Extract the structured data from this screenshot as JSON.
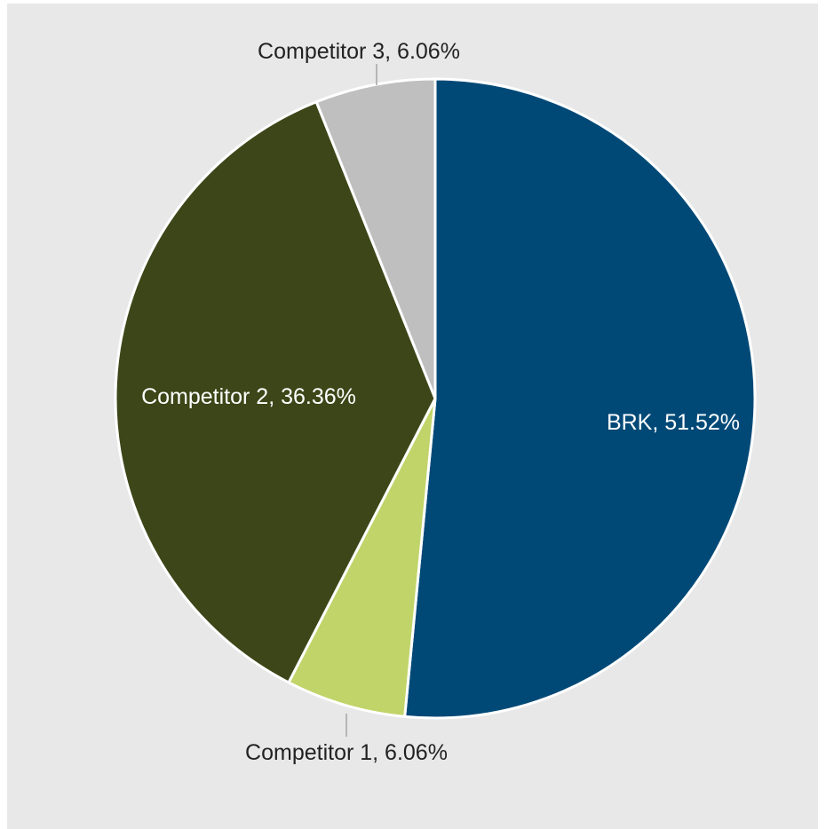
{
  "chart_data": {
    "type": "pie",
    "title": "",
    "slices": [
      {
        "label": "BRK",
        "value": 51.52,
        "display": "BRK, 51.52%",
        "color": "#004977",
        "label_color": "#ffffff"
      },
      {
        "label": "Competitor 1",
        "value": 6.06,
        "display": "Competitor 1, 6.06%",
        "color": "#c1d46a",
        "label_color": "#222222"
      },
      {
        "label": "Competitor 2",
        "value": 36.36,
        "display": "Competitor 2, 36.36%",
        "color": "#3d4618",
        "label_color": "#ffffff"
      },
      {
        "label": "Competitor 3",
        "value": 6.06,
        "display": "Competitor 3, 6.06%",
        "color": "#bfbfbf",
        "label_color": "#222222"
      }
    ],
    "start_angle": "12 o'clock",
    "direction": "clockwise",
    "background_color": "#e8e8e8",
    "slice_border_color": "#ffffff"
  }
}
